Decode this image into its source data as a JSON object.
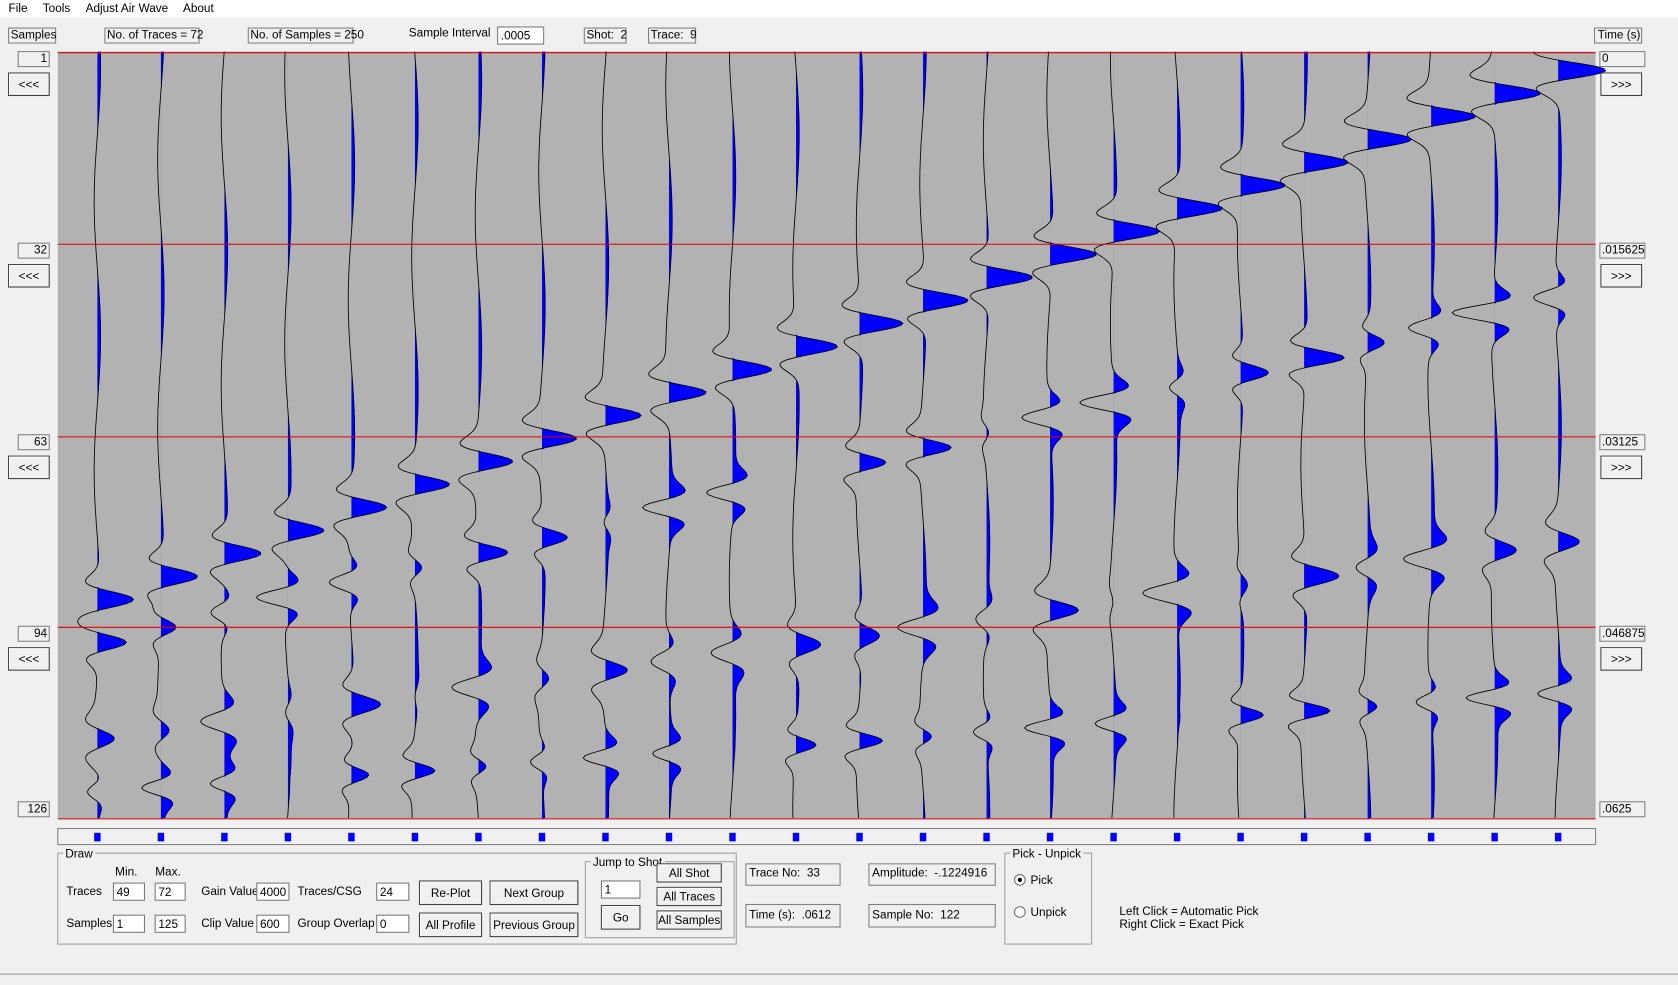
{
  "menu": [
    "File",
    "Tools",
    "Adjust Air Wave",
    "About"
  ],
  "header": {
    "samples_label": "Samples",
    "traces": "No. of Traces = 72",
    "samples": "No. of Samples = 250",
    "sample_interval_label": "Sample Interval",
    "sample_interval": ".0005",
    "shot": "Shot:  2",
    "trace": "Trace:  9",
    "time_label": "Time (s)"
  },
  "left_axis": [
    "1",
    "32",
    "63",
    "94",
    "126"
  ],
  "right_axis": [
    "0",
    ".015625",
    ".03125",
    ".046875",
    ".0625"
  ],
  "left_buttons": [
    "<<<",
    "<<<",
    "<<<",
    "<<<"
  ],
  "right_buttons": [
    ">>>",
    ">>>",
    ">>>",
    ">>>"
  ],
  "draw": {
    "group": "Draw",
    "min": "Min.",
    "max": "Max.",
    "traces_label": "Traces",
    "traces_min": "49",
    "traces_max": "72",
    "samples_label": "Samples",
    "samples_min": "1",
    "samples_max": "125",
    "gain_label": "Gain Value",
    "gain": "4000",
    "clip_label": "Clip Value",
    "clip": "600",
    "traces_csg_label": "Traces/CSG",
    "traces_csg": "24",
    "overlap_label": "Group Overlap",
    "overlap": "0",
    "replot": "Re-Plot",
    "next": "Next Group",
    "all_profile": "All Profile",
    "previous": "Previous Group"
  },
  "jump": {
    "group": "Jump to Shot",
    "value": "1",
    "go": "Go",
    "all_shot": "All Shot",
    "all_traces": "All Traces",
    "all_samples": "All Samples"
  },
  "info": {
    "trace_no": "Trace No:  33",
    "time": "Time (s):  .0612",
    "amplitude": "Amplitude:  -.1224916",
    "sample_no": "Sample No:  122"
  },
  "pick": {
    "group": "Pick - Unpick",
    "pick": "Pick",
    "unpick": "Unpick"
  },
  "help": [
    "Left Click = Automatic Pick",
    "Right Click = Exact Pick"
  ]
}
